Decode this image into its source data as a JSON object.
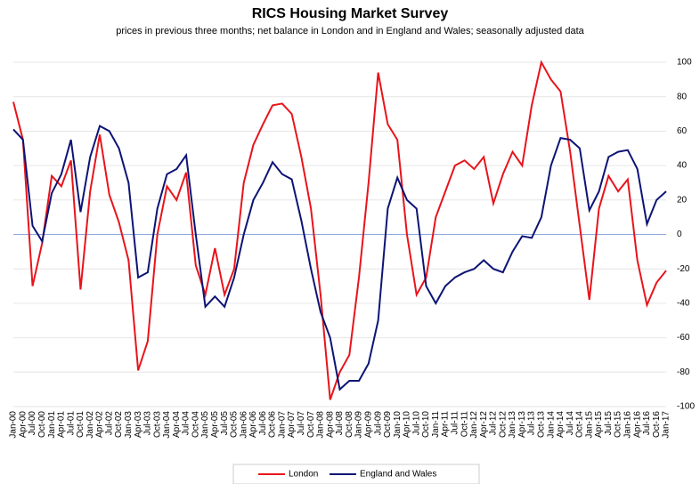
{
  "chart_data": {
    "type": "line",
    "title": "RICS Housing Market Survey",
    "subtitle": "prices in previous three months; net balance in London and in England and Wales; seasonally adjusted data",
    "categories": [
      "Jan-00",
      "Apr-00",
      "Jul-00",
      "Oct-00",
      "Jan-01",
      "Apr-01",
      "Jul-01",
      "Oct-01",
      "Jan-02",
      "Apr-02",
      "Jul-02",
      "Oct-02",
      "Jan-03",
      "Apr-03",
      "Jul-03",
      "Oct-03",
      "Jan-04",
      "Apr-04",
      "Jul-04",
      "Oct-04",
      "Jan-05",
      "Apr-05",
      "Jul-05",
      "Oct-05",
      "Jan-06",
      "Apr-06",
      "Jul-06",
      "Oct-06",
      "Jan-07",
      "Apr-07",
      "Jul-07",
      "Oct-07",
      "Jan-08",
      "Apr-08",
      "Jul-08",
      "Oct-08",
      "Jan-09",
      "Apr-09",
      "Jul-09",
      "Oct-09",
      "Jan-10",
      "Apr-10",
      "Jul-10",
      "Oct-10",
      "Jan-11",
      "Apr-11",
      "Jul-11",
      "Oct-11",
      "Jan-12",
      "Apr-12",
      "Jul-12",
      "Oct-12",
      "Jan-13",
      "Apr-13",
      "Jul-13",
      "Oct-13",
      "Jan-14",
      "Apr-14",
      "Jul-14",
      "Oct-14",
      "Jan-15",
      "Apr-15",
      "Jul-15",
      "Oct-15",
      "Jan-16",
      "Apr-16",
      "Jul-16",
      "Oct-16",
      "Jan-17"
    ],
    "series": [
      {
        "name": "London",
        "color": "#e8141b",
        "values": [
          77,
          55,
          -30,
          -5,
          34,
          28,
          43,
          -32,
          25,
          58,
          23,
          7,
          -15,
          -79,
          -62,
          0,
          28,
          20,
          36,
          -18,
          -35,
          -8,
          -35,
          -20,
          30,
          52,
          64,
          75,
          76,
          70,
          45,
          15,
          -35,
          -96,
          -80,
          -70,
          -25,
          30,
          94,
          64,
          55,
          0,
          -35,
          -25,
          10,
          25,
          40,
          43,
          38,
          45,
          18,
          35,
          48,
          40,
          75,
          100,
          90,
          83,
          48,
          5,
          -38,
          15,
          34,
          25,
          32,
          -15,
          -41,
          -28,
          -21
        ]
      },
      {
        "name": "England and Wales",
        "color": "#0d1475",
        "values": [
          61,
          55,
          5,
          -4,
          24,
          35,
          55,
          13,
          45,
          63,
          60,
          50,
          30,
          -25,
          -22,
          15,
          35,
          38,
          46,
          0,
          -42,
          -36,
          -42,
          -25,
          0,
          20,
          30,
          42,
          35,
          32,
          8,
          -20,
          -45,
          -60,
          -90,
          -85,
          -85,
          -75,
          -50,
          15,
          33,
          20,
          15,
          -30,
          -40,
          -30,
          -25,
          -22,
          -20,
          -15,
          -20,
          -22,
          -10,
          -1,
          -2,
          10,
          40,
          56,
          55,
          50,
          14,
          25,
          45,
          48,
          49,
          38,
          6,
          20,
          25
        ]
      }
    ],
    "ylim": [
      -100,
      100
    ],
    "yticks": [
      -100,
      -80,
      -60,
      -40,
      -20,
      0,
      20,
      40,
      60,
      80,
      100
    ],
    "grid": true
  }
}
